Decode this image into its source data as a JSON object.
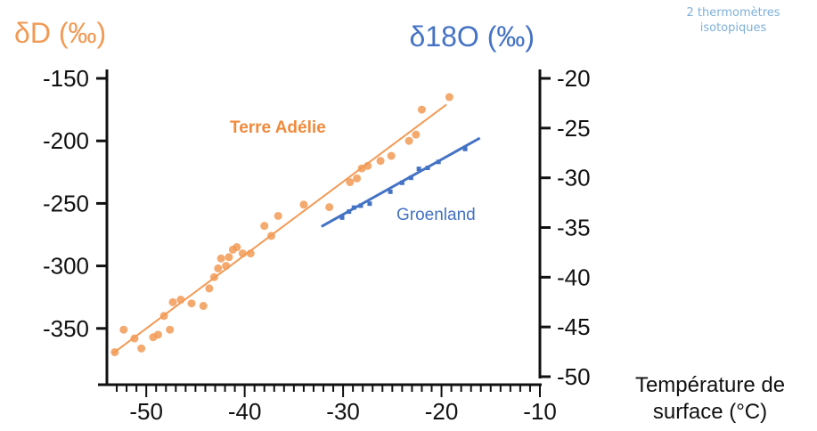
{
  "chart_data": {
    "type": "scatter",
    "left_axis_label": "δD (‰)",
    "right_axis_label": "δ18O (‰)",
    "xlabel": "Température de surface (°C)",
    "xlabel_line1": "Température de",
    "xlabel_line2": "surface (°C)",
    "annotation": "2 thermomètres isotopiques",
    "annotation_line1": "2 thermomètres",
    "annotation_line2": "isotopiques",
    "xlim": [
      -54,
      -10
    ],
    "x_ticks": [
      -50,
      -40,
      -30,
      -20,
      -10
    ],
    "ylim_left": [
      -395,
      -150
    ],
    "y_ticks_left": [
      -150,
      -200,
      -250,
      -300,
      -350
    ],
    "ylim_right": [
      -50,
      -20
    ],
    "y_ticks_right": [
      -20,
      -25,
      -30,
      -35,
      -40,
      -45,
      -50
    ],
    "grid": false,
    "colors": {
      "terre_adelie": "#f29a55",
      "groenland": "#4472c4",
      "axis_left": "#f29a55",
      "axis_right": "#4472c4"
    },
    "series": [
      {
        "name": "Terre Adélie",
        "axis": "left",
        "marker": "circle",
        "points": [
          [
            -53.2,
            -369
          ],
          [
            -52.3,
            -351
          ],
          [
            -51.2,
            -358
          ],
          [
            -50.5,
            -366
          ],
          [
            -49.3,
            -357
          ],
          [
            -48.8,
            -355
          ],
          [
            -48.2,
            -340
          ],
          [
            -47.6,
            -351
          ],
          [
            -47.3,
            -329
          ],
          [
            -46.5,
            -327
          ],
          [
            -45.4,
            -330
          ],
          [
            -44.2,
            -332
          ],
          [
            -43.6,
            -318
          ],
          [
            -43.1,
            -309
          ],
          [
            -42.7,
            -302
          ],
          [
            -42.4,
            -294
          ],
          [
            -41.9,
            -300
          ],
          [
            -41.6,
            -293
          ],
          [
            -41.2,
            -287
          ],
          [
            -40.8,
            -285
          ],
          [
            -40.2,
            -290
          ],
          [
            -39.4,
            -290
          ],
          [
            -38.0,
            -268
          ],
          [
            -37.3,
            -276
          ],
          [
            -36.6,
            -260
          ],
          [
            -34.0,
            -251
          ],
          [
            -31.4,
            -253
          ],
          [
            -29.3,
            -233
          ],
          [
            -28.6,
            -230
          ],
          [
            -28.1,
            -222
          ],
          [
            -27.5,
            -220
          ],
          [
            -26.2,
            -216
          ],
          [
            -25.1,
            -212
          ],
          [
            -23.3,
            -200
          ],
          [
            -22.6,
            -195
          ],
          [
            -22.0,
            -175
          ],
          [
            -19.2,
            -165
          ]
        ],
        "fit": [
          [
            -53.4,
            -370
          ],
          [
            -19.5,
            -171
          ]
        ]
      },
      {
        "name": "Groenland",
        "axis": "right",
        "marker": "square",
        "points": [
          [
            -30.1,
            -34.0
          ],
          [
            -29.4,
            -33.4
          ],
          [
            -28.9,
            -33.0
          ],
          [
            -28.2,
            -32.8
          ],
          [
            -27.3,
            -32.6
          ],
          [
            -25.2,
            -31.4
          ],
          [
            -24.0,
            -30.5
          ],
          [
            -23.1,
            -30.0
          ],
          [
            -22.3,
            -29.1
          ],
          [
            -21.4,
            -29.0
          ],
          [
            -20.3,
            -28.4
          ],
          [
            -17.6,
            -27.1
          ]
        ],
        "fit": [
          [
            -32.2,
            -34.9
          ],
          [
            -16.1,
            -26.0
          ]
        ]
      }
    ]
  }
}
